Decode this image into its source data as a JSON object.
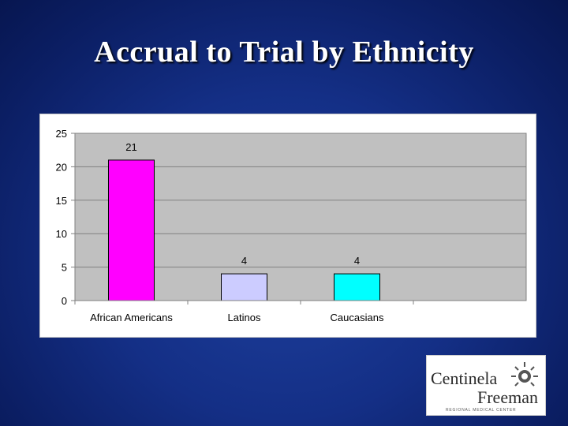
{
  "slide": {
    "title": "Accrual to Trial by Ethnicity"
  },
  "chart_data": {
    "type": "bar",
    "title": "",
    "xlabel": "",
    "ylabel": "",
    "categories": [
      "African Americans",
      "Latinos",
      "Caucasians"
    ],
    "values": [
      21,
      4,
      4
    ],
    "data_labels": [
      "21",
      "4",
      "4"
    ],
    "bar_colors": [
      "#ff00ff",
      "#ccccff",
      "#00ffff"
    ],
    "ylim": [
      0,
      25
    ],
    "yticks": [
      0,
      5,
      10,
      15,
      20,
      25
    ],
    "grid": true,
    "legend": "none",
    "plot_background": "#c0c0c0"
  },
  "logo": {
    "line1": "Centinela",
    "line2": "Freeman",
    "line3": "REGIONAL MEDICAL CENTER",
    "icon": "sun-logo-icon"
  }
}
